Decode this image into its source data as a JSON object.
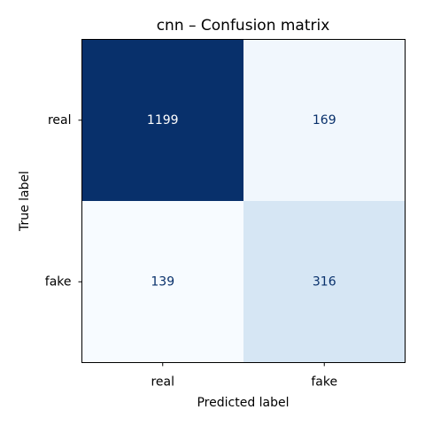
{
  "chart_data": {
    "type": "heatmap",
    "title": "cnn – Confusion matrix",
    "xlabel": "Predicted label",
    "ylabel": "True label",
    "x_categories": [
      "real",
      "fake"
    ],
    "y_categories": [
      "real",
      "fake"
    ],
    "values": [
      [
        1199,
        169
      ],
      [
        139,
        316
      ]
    ],
    "colormap": "Blues",
    "colors": {
      "min": "#f7fbff",
      "max": "#08306b",
      "text_dark": "#08306b",
      "text_light": "#ffffff"
    },
    "colorbar": false,
    "grid": false
  }
}
